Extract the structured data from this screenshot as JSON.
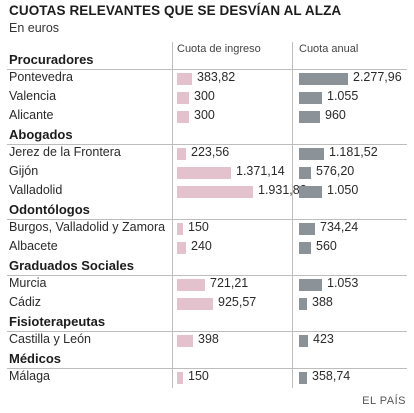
{
  "title": "CUOTAS RELEVANTES QUE SE DESVÍAN AL ALZA",
  "subtitle": "En euros",
  "columns": {
    "ingreso": "Cuota de ingreso",
    "anual": "Cuota anual"
  },
  "source": "EL PAÍS",
  "colors": {
    "ingreso_bar": "#e3c2cd",
    "anual_bar": "#8b9399"
  },
  "chart_data": {
    "type": "bar",
    "title": "CUOTAS RELEVANTES QUE SE DESVÍAN AL ALZA",
    "subtitle": "En euros",
    "series": [
      {
        "name": "Cuota de ingreso",
        "key": "ingreso",
        "max": 1931.82
      },
      {
        "name": "Cuota anual",
        "key": "anual",
        "max": 2277.96
      }
    ],
    "groups": [
      {
        "name": "Procuradores",
        "rows": [
          {
            "city": "Pontevedra",
            "ingreso": 383.82,
            "ingreso_label": "383,82",
            "anual": 2277.96,
            "anual_label": "2.277,96"
          },
          {
            "city": "Valencia",
            "ingreso": 300,
            "ingreso_label": "300",
            "anual": 1055,
            "anual_label": "1.055"
          },
          {
            "city": "Alicante",
            "ingreso": 300,
            "ingreso_label": "300",
            "anual": 960,
            "anual_label": "960"
          }
        ]
      },
      {
        "name": "Abogados",
        "rows": [
          {
            "city": "Jerez de la Frontera",
            "ingreso": 223.56,
            "ingreso_label": "223,56",
            "anual": 1181.52,
            "anual_label": "1.181,52"
          },
          {
            "city": "Gijón",
            "ingreso": 1371.14,
            "ingreso_label": "1.371,14",
            "anual": 576.2,
            "anual_label": "576,20"
          },
          {
            "city": "Valladolid",
            "ingreso": 1931.82,
            "ingreso_label": "1.931,82",
            "anual": 1050,
            "anual_label": "1.050"
          }
        ]
      },
      {
        "name": "Odontólogos",
        "rows": [
          {
            "city": "Burgos, Valladolid y Zamora",
            "ingreso": 150,
            "ingreso_label": "150",
            "anual": 734.24,
            "anual_label": "734,24"
          },
          {
            "city": "Albacete",
            "ingreso": 240,
            "ingreso_label": "240",
            "anual": 560,
            "anual_label": "560"
          }
        ]
      },
      {
        "name": "Graduados Sociales",
        "rows": [
          {
            "city": "Murcia",
            "ingreso": 721.21,
            "ingreso_label": "721,21",
            "anual": 1053,
            "anual_label": "1.053"
          },
          {
            "city": "Cádiz",
            "ingreso": 925.57,
            "ingreso_label": "925,57",
            "anual": 388,
            "anual_label": "388"
          }
        ]
      },
      {
        "name": "Fisioterapeutas",
        "rows": [
          {
            "city": "Castilla y León",
            "ingreso": 398,
            "ingreso_label": "398",
            "anual": 423,
            "anual_label": "423"
          }
        ]
      },
      {
        "name": "Médicos",
        "rows": [
          {
            "city": "Málaga",
            "ingreso": 150,
            "ingreso_label": "150",
            "anual": 358.74,
            "anual_label": "358,74"
          }
        ]
      }
    ]
  }
}
